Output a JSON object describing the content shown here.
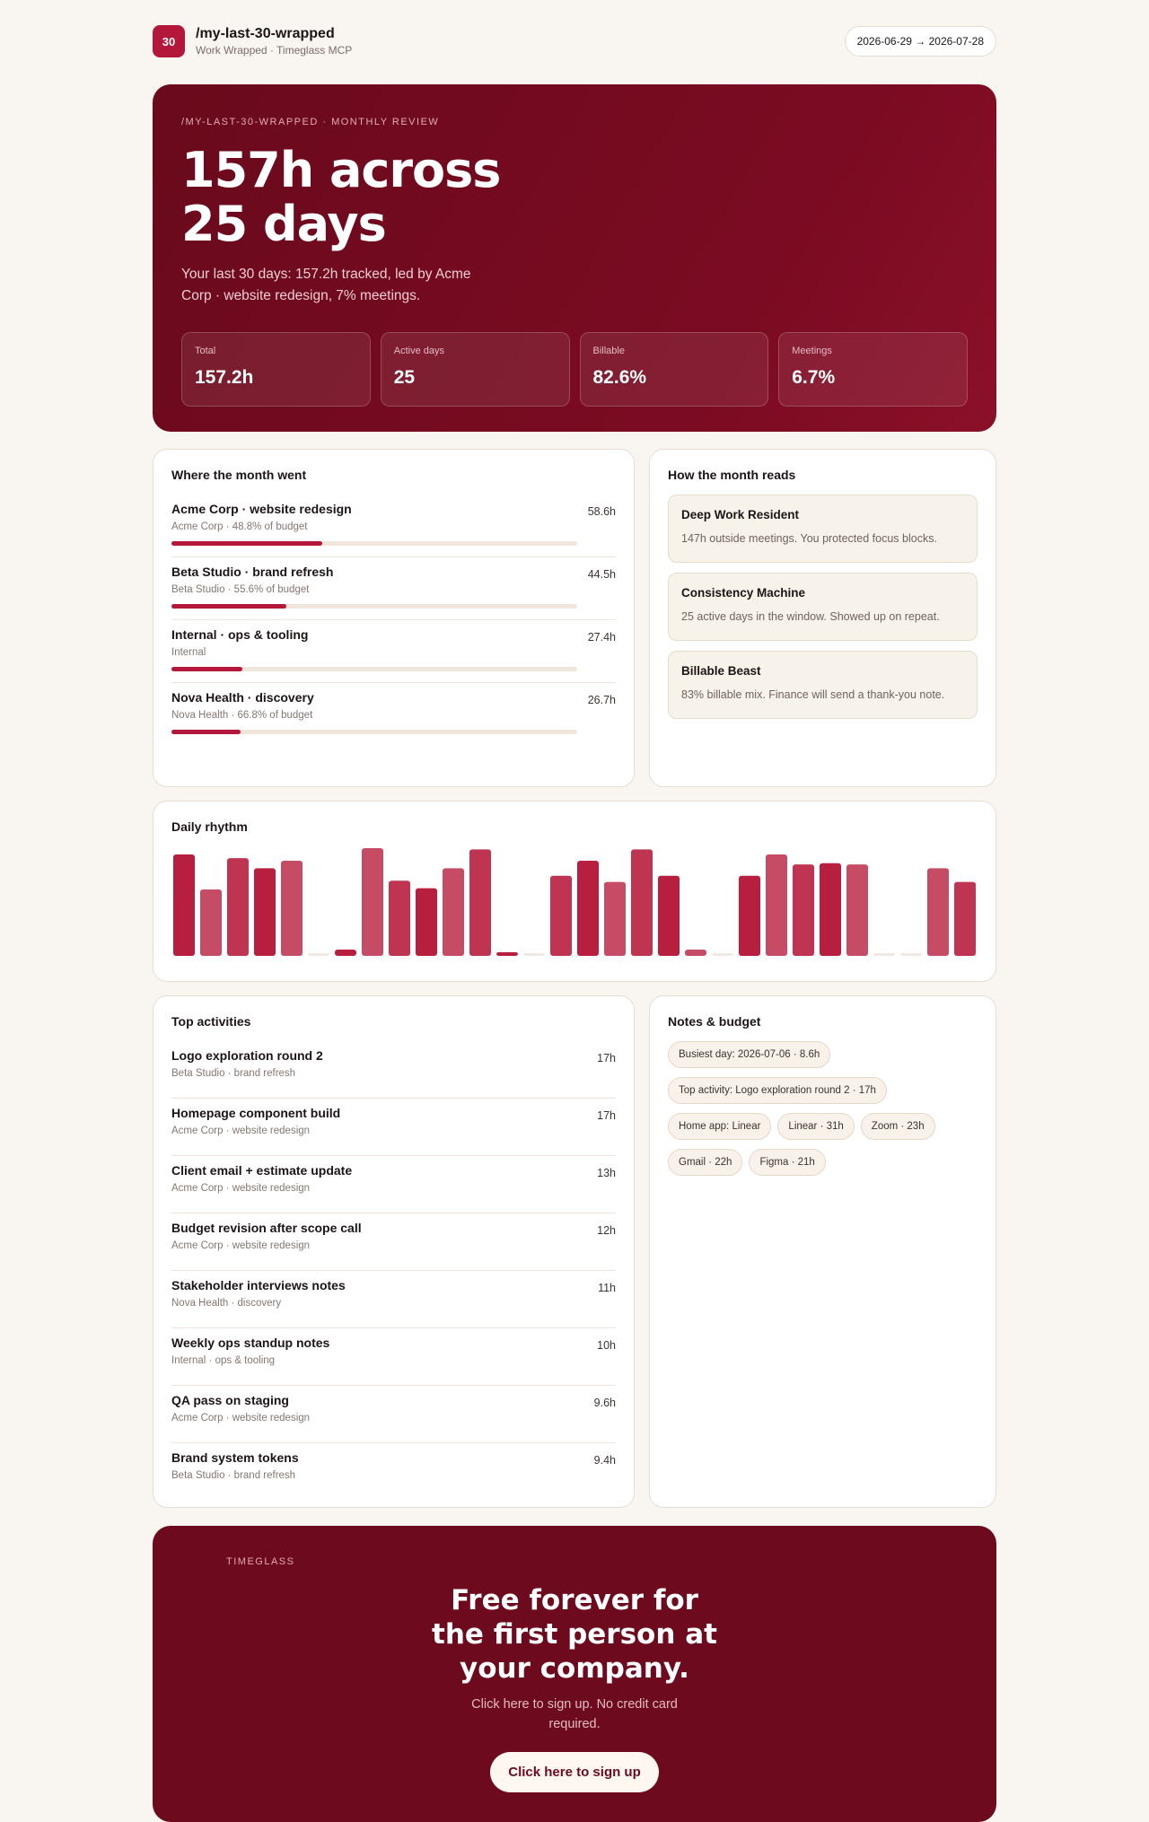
{
  "header": {
    "badge": "30",
    "title": "/my-last-30-wrapped",
    "subtitle": "Work Wrapped · Timeglass MCP",
    "range": "2026-06-29 → 2026-07-28"
  },
  "hero": {
    "eyebrow": "/MY-LAST-30-WRAPPED · MONTHLY REVIEW",
    "headline": "157h across 25 days",
    "summary": "Your last 30 days: 157.2h tracked, led by Acme Corp · website redesign, 7% meetings.",
    "stats": [
      {
        "label": "Total",
        "value": {
          "value": 157.2,
          "label": "157.2h"
        }
      },
      {
        "label": "Active days",
        "value": "25"
      },
      {
        "label": "Billable",
        "value": "82.6%"
      },
      {
        "label": "Meetings",
        "value": "6.7%"
      }
    ]
  },
  "projects": {
    "title": "Where the month went",
    "items": [
      {
        "name": "Acme Corp · website redesign",
        "meta": "Acme Corp · 48.8% of budget",
        "hours": {
          "value": 58.6,
          "label": "58.6h"
        }
      },
      {
        "name": "Beta Studio · brand refresh",
        "meta": "Beta Studio · 55.6% of budget",
        "hours": {
          "value": 44.5,
          "label": "44.5h"
        }
      },
      {
        "name": "Internal · ops & tooling",
        "meta": "Internal",
        "hours": {
          "value": 27.4,
          "label": "27.4h"
        }
      },
      {
        "name": "Nova Health · discovery",
        "meta": "Nova Health · 66.8% of budget",
        "hours": {
          "value": 26.7,
          "label": "26.7h"
        }
      }
    ]
  },
  "reads": {
    "title": "How the month reads",
    "items": [
      {
        "title": "Deep Work Resident",
        "text": "147h outside meetings. You protected focus blocks."
      },
      {
        "title": "Consistency Machine",
        "text": "25 active days in the window. Showed up on repeat."
      },
      {
        "title": "Billable Beast",
        "text": "83% billable mix. Finance will send a thank-you note."
      }
    ]
  },
  "daily_rhythm": {
    "title": "Daily rhythm",
    "color": "#b81e3e",
    "values": [
      8.1,
      5.3,
      7.8,
      7.0,
      7.6,
      0,
      0.5,
      8.6,
      6.0,
      5.4,
      7.0,
      8.5,
      0.3,
      0,
      6.4,
      7.6,
      5.9,
      8.5,
      6.4,
      0.5,
      0,
      6.4,
      8.1,
      7.3,
      7.4,
      7.3,
      0,
      0,
      7.0,
      5.9
    ]
  },
  "activities": {
    "title": "Top activities",
    "items": [
      {
        "name": "Logo exploration round 2",
        "meta": "Beta Studio · brand refresh",
        "hours": "17h"
      },
      {
        "name": "Homepage component build",
        "meta": "Acme Corp · website redesign",
        "hours": "17h"
      },
      {
        "name": "Client email + estimate update",
        "meta": "Acme Corp · website redesign",
        "hours": "13h"
      },
      {
        "name": "Budget revision after scope call",
        "meta": "Acme Corp · website redesign",
        "hours": "12h"
      },
      {
        "name": "Stakeholder interviews notes",
        "meta": "Nova Health · discovery",
        "hours": "11h"
      },
      {
        "name": "Weekly ops standup notes",
        "meta": "Internal · ops & tooling",
        "hours": "10h"
      },
      {
        "name": "QA pass on staging",
        "meta": "Acme Corp · website redesign",
        "hours": "9.6h"
      },
      {
        "name": "Brand system tokens",
        "meta": "Beta Studio · brand refresh",
        "hours": "9.4h"
      }
    ]
  },
  "notes": {
    "title": "Notes & budget",
    "chips": [
      "Busiest day: 2026-07-06 · 8.6h",
      "Top activity: Logo exploration round 2 · 17h",
      "Home app: Linear",
      "Linear · 31h",
      "Zoom · 23h",
      "Gmail · 22h",
      "Figma · 21h"
    ]
  },
  "cta": {
    "eyebrow": "TIMEGLASS",
    "headline": "Free forever for the first person at your company.",
    "text": "Click here to sign up. No credit card required.",
    "button": "Click here to sign up"
  }
}
